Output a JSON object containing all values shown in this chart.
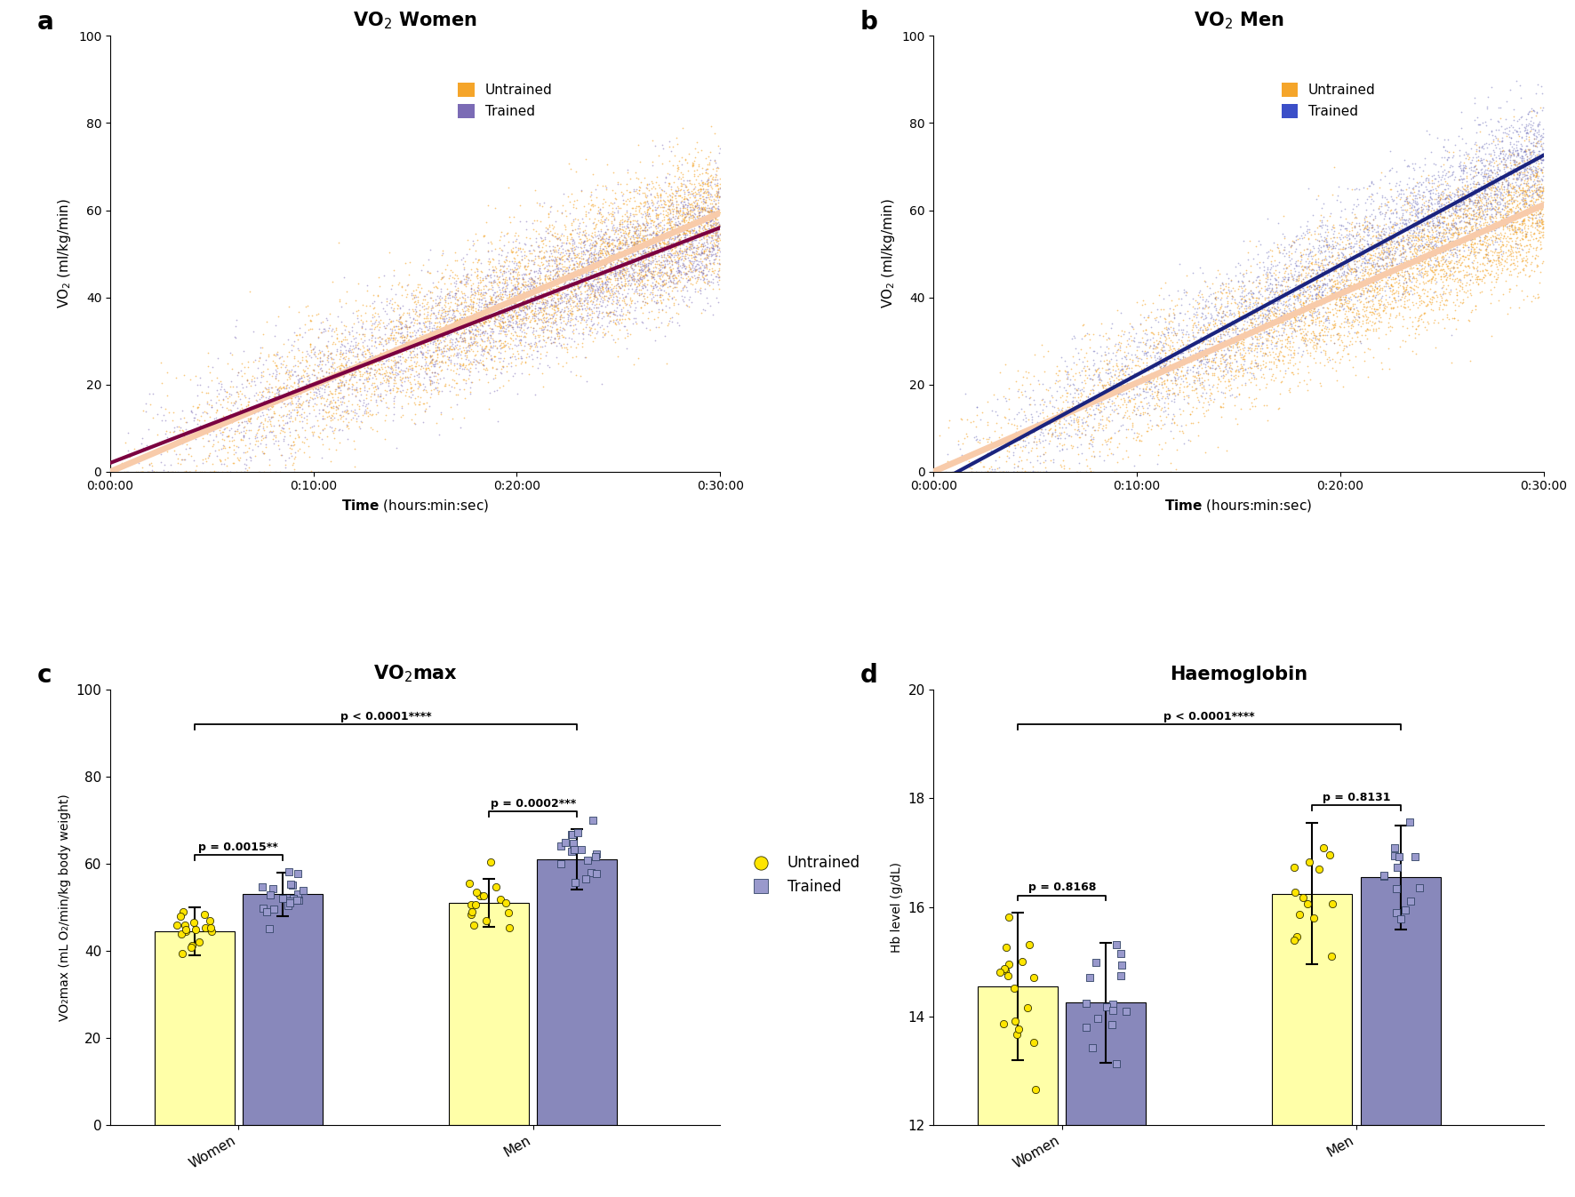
{
  "panel_a_title": "VO$_2$ Women",
  "panel_b_title": "VO$_2$ Men",
  "panel_c_title": "VO$_2$max",
  "panel_d_title": "Haemoglobin",
  "scatter_xlabel": "Time (hours:min:sec)",
  "scatter_ylabel": "VO$_2$ (ml/kg/min)",
  "scatter_xticks_seconds": [
    0,
    600,
    1200,
    1800
  ],
  "scatter_xtick_labels": [
    "0:00:00",
    "0:10:00",
    "0:20:00",
    "0:30:00"
  ],
  "untrained_color_women": "#F5A52A",
  "trained_color_women_scatter": "#7B6BB5",
  "untrained_color_men": "#F5A52A",
  "trained_color_men_scatter": "#7070BB",
  "line_untrained_women_color": "#F8CBAA",
  "line_trained_women_color": "#7B0040",
  "line_untrained_men_color": "#F8CBAA",
  "line_trained_men_color": "#1A237E",
  "women_untrained_slope": 0.033,
  "women_untrained_intercept": 0.0,
  "women_trained_slope": 0.03,
  "women_trained_intercept": 2.0,
  "men_untrained_slope": 0.034,
  "men_untrained_intercept": 0.0,
  "men_trained_slope": 0.042,
  "men_trained_intercept": -3.0,
  "bar_untrained_color": "#FFFFA8",
  "bar_trained_color": "#8888BB",
  "dot_untrained_color": "#FFE500",
  "dot_trained_color": "#9999CC",
  "vo2max_women_untrained_mean": 44.5,
  "vo2max_women_untrained_err": 5.5,
  "vo2max_women_trained_mean": 53.0,
  "vo2max_women_trained_err": 5.0,
  "vo2max_men_untrained_mean": 51.0,
  "vo2max_men_untrained_err": 5.5,
  "vo2max_men_trained_mean": 61.0,
  "vo2max_men_trained_err": 7.0,
  "vo2max_ylabel": "VO₂max (mL O₂/min/kg body weight)",
  "hb_women_untrained_mean": 14.55,
  "hb_women_untrained_err": 1.35,
  "hb_women_trained_mean": 14.25,
  "hb_women_trained_err": 1.1,
  "hb_men_untrained_mean": 16.25,
  "hb_men_untrained_err": 1.3,
  "hb_men_trained_mean": 16.55,
  "hb_men_trained_err": 0.95,
  "hb_ylabel": "Hb level (g/dL)",
  "background_color": "#FFFFFF"
}
